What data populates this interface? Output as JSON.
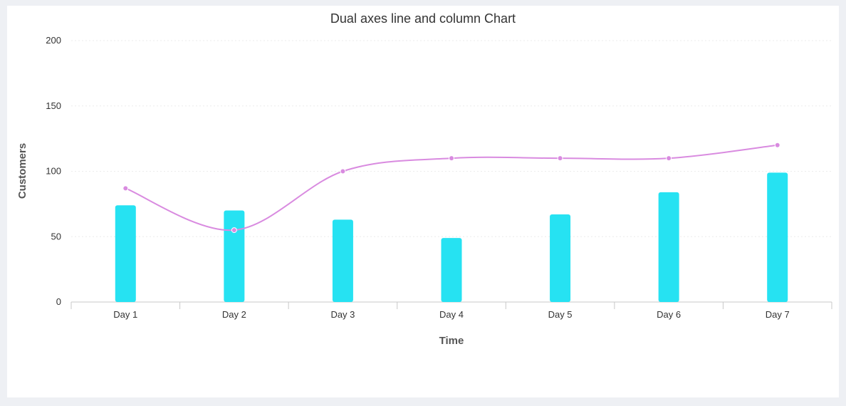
{
  "chart_data": {
    "type": "bar",
    "title": "Dual axes line and column Chart",
    "xlabel": "Time",
    "ylabel": "Customers",
    "ylim": [
      0,
      200
    ],
    "yticks": [
      0,
      50,
      100,
      150,
      200
    ],
    "categories": [
      "Day 1",
      "Day 2",
      "Day 3",
      "Day 4",
      "Day 5",
      "Day 6",
      "Day 7"
    ],
    "series": [
      {
        "type": "column",
        "color": "#26e2f2",
        "values": [
          74,
          70,
          63,
          49,
          67,
          84,
          99
        ]
      },
      {
        "type": "line",
        "color": "#d98be0",
        "smooth": true,
        "values": [
          87,
          55,
          100,
          110,
          110,
          110,
          120
        ]
      }
    ],
    "grid": true,
    "legend": "none"
  }
}
